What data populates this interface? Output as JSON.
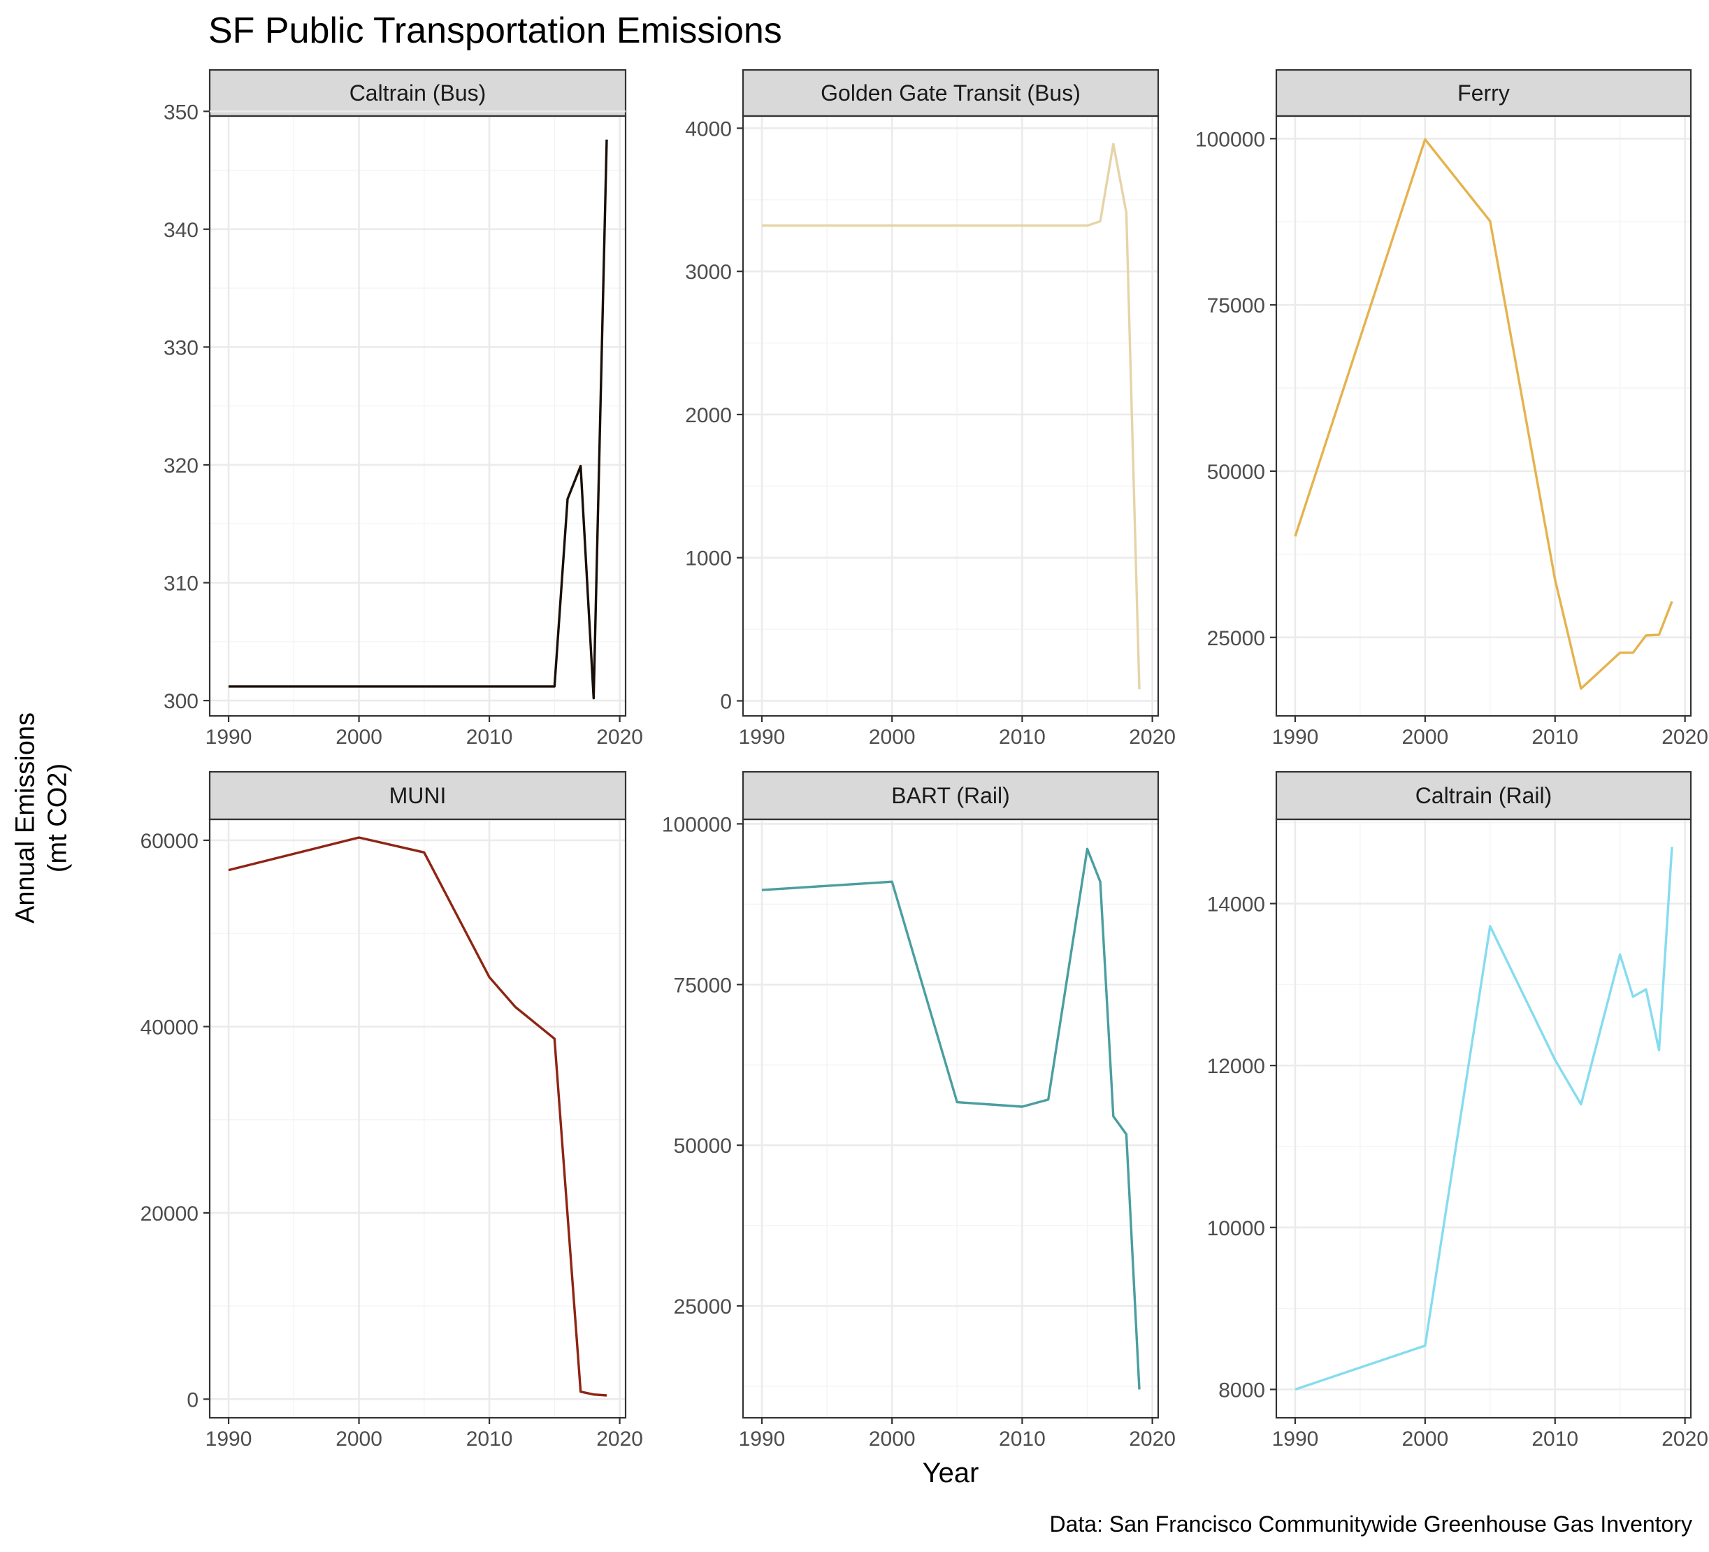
{
  "title": "SF Public Transportation Emissions",
  "caption": "Data: San Francisco Communitywide Greenhouse Gas Inventory",
  "chart_data": {
    "type": "line",
    "layout": "facet-grid-2x3",
    "grid": true,
    "xlabel": "Year",
    "ylabel": [
      "Annual Emissions",
      "(mt CO2)"
    ],
    "x_ticks": [
      1990,
      2000,
      2010,
      2020
    ],
    "facets": [
      {
        "name": "Caltrain (Bus)",
        "color": "#1a0f08",
        "xlim": [
          1988.55,
          2020.45
        ],
        "ylim": [
          298.7,
          349.6
        ],
        "y_ticks": [
          300,
          310,
          320,
          330,
          340,
          350
        ],
        "x": [
          1990,
          2000,
          2005,
          2010,
          2015,
          2016,
          2017,
          2018,
          2019
        ],
        "y": [
          301.2,
          301.2,
          301.2,
          301.2,
          301.2,
          317.1,
          319.9,
          300.2,
          347.6
        ]
      },
      {
        "name": "Golden Gate Transit (Bus)",
        "color": "#e6d4a8",
        "xlim": [
          1988.55,
          2020.45
        ],
        "ylim": [
          -105,
          4085
        ],
        "y_ticks": [
          0,
          1000,
          2000,
          3000,
          4000
        ],
        "x": [
          1990,
          2000,
          2005,
          2010,
          2015,
          2016,
          2017,
          2018,
          2019
        ],
        "y": [
          3320,
          3320,
          3320,
          3320,
          3320,
          3350,
          3890,
          3410,
          80
        ]
      },
      {
        "name": "Ferry",
        "color": "#e5b34e",
        "xlim": [
          1988.55,
          2020.45
        ],
        "ylim": [
          13200,
          103400
        ],
        "y_ticks": [
          25000,
          50000,
          75000,
          100000
        ],
        "x": [
          1990,
          2000,
          2005,
          2010,
          2012,
          2015,
          2016,
          2017,
          2018,
          2019
        ],
        "y": [
          40200,
          99900,
          87600,
          33700,
          17300,
          22700,
          22700,
          25300,
          25400,
          30400
        ]
      },
      {
        "name": "MUNI",
        "color": "#8e2513",
        "xlim": [
          1988.55,
          2020.45
        ],
        "ylim": [
          -2000,
          62250
        ],
        "y_ticks": [
          0,
          20000,
          40000,
          60000
        ],
        "x": [
          1990,
          2000,
          2005,
          2010,
          2012,
          2015,
          2017,
          2018,
          2019
        ],
        "y": [
          56800,
          60300,
          58700,
          45300,
          42100,
          38700,
          800,
          500,
          400
        ]
      },
      {
        "name": "BART (Rail)",
        "color": "#4a9ea0",
        "xlim": [
          1988.55,
          2020.45
        ],
        "ylim": [
          7600,
          100700
        ],
        "y_ticks": [
          25000,
          50000,
          75000,
          100000
        ],
        "x": [
          1990,
          2000,
          2005,
          2010,
          2012,
          2015,
          2016,
          2017,
          2018,
          2019
        ],
        "y": [
          89700,
          91000,
          56700,
          56000,
          57100,
          96100,
          91000,
          54500,
          51700,
          12000
        ]
      },
      {
        "name": "Caltrain (Rail)",
        "color": "#86dcef",
        "xlim": [
          1988.55,
          2020.45
        ],
        "ylim": [
          7650,
          15040
        ],
        "y_ticks": [
          8000,
          10000,
          12000,
          14000
        ],
        "x": [
          1990,
          2000,
          2005,
          2010,
          2012,
          2015,
          2016,
          2017,
          2018,
          2019
        ],
        "y": [
          8000,
          8540,
          13720,
          12070,
          11520,
          13370,
          12850,
          12940,
          12190,
          14700
        ]
      }
    ]
  }
}
